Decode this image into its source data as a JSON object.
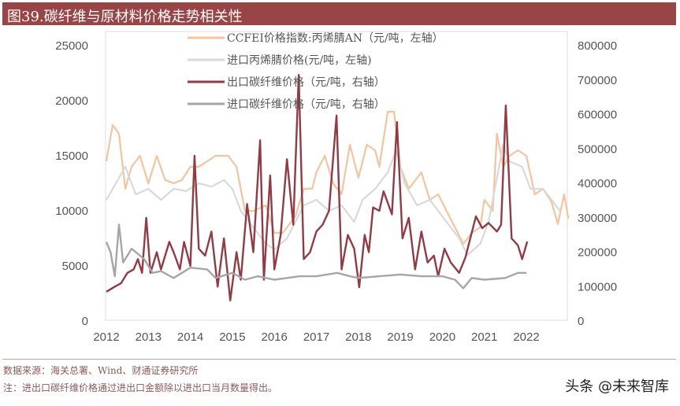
{
  "title": "图39.碳纤维与原材料价格走势相关性",
  "footer": {
    "source": "数据来源：海关总署、Wind、财通证券研究所",
    "note": "注：进出口碳纤维价格通过进出口金额除以进出口当月数量得出。"
  },
  "watermark": "头条 @未来智库",
  "chart_data": {
    "type": "line",
    "title": "",
    "x_axis": {
      "ticks": [
        "2012",
        "2013",
        "2014",
        "2015",
        "2016",
        "2017",
        "2018",
        "2019",
        "2020",
        "2021",
        "2022"
      ],
      "range": [
        2012,
        2023.05
      ]
    },
    "y_left": {
      "ticks": [
        "0",
        "5000",
        "10000",
        "15000",
        "20000",
        "25000"
      ],
      "range": [
        0,
        25000
      ]
    },
    "y_right": {
      "ticks": [
        "0",
        "100000",
        "200000",
        "300000",
        "400000",
        "500000",
        "600000",
        "700000",
        "800000"
      ],
      "range": [
        0,
        800000
      ]
    },
    "grid": false,
    "legend_position": "top-center",
    "series": [
      {
        "name": "CCFEI价格指数:丙烯腈AN（元/吨，左轴）",
        "axis": "left",
        "color": "#f5c49c",
        "x": [
          2012.0,
          2012.15,
          2012.3,
          2012.45,
          2012.6,
          2012.8,
          2013.0,
          2013.2,
          2013.4,
          2013.6,
          2013.8,
          2014.0,
          2014.2,
          2014.4,
          2014.6,
          2014.9,
          2015.1,
          2015.3,
          2015.5,
          2015.8,
          2016.0,
          2016.2,
          2016.5,
          2016.7,
          2016.9,
          2017.0,
          2017.2,
          2017.4,
          2017.6,
          2017.8,
          2018.0,
          2018.2,
          2018.4,
          2018.5,
          2018.7,
          2018.85,
          2019.0,
          2019.2,
          2019.5,
          2019.7,
          2019.9,
          2020.1,
          2020.3,
          2020.5,
          2020.7,
          2020.9,
          2021.0,
          2021.2,
          2021.3,
          2021.45,
          2021.6,
          2021.8,
          2022.0,
          2022.2,
          2022.4,
          2022.6,
          2022.75,
          2022.9,
          2023.0
        ],
        "y": [
          14500,
          17800,
          17000,
          12000,
          14000,
          15000,
          12500,
          15000,
          12800,
          12500,
          12800,
          14000,
          14000,
          14500,
          15000,
          15000,
          14000,
          10000,
          10000,
          10500,
          8000,
          8000,
          9500,
          12000,
          12000,
          13500,
          15000,
          12500,
          11500,
          16000,
          13000,
          16000,
          15500,
          14000,
          19000,
          19000,
          14000,
          12000,
          13500,
          11000,
          11500,
          10000,
          8500,
          7000,
          8000,
          8500,
          11000,
          10000,
          17000,
          14000,
          15000,
          15500,
          15000,
          11500,
          12000,
          10800,
          8800,
          11500,
          9300
        ]
      },
      {
        "name": "进口丙烯腈价格(元/吨，左轴)",
        "axis": "left",
        "color": "#d9d9d9",
        "x": [
          2012.0,
          2012.3,
          2012.45,
          2012.7,
          2013.0,
          2013.3,
          2013.6,
          2013.9,
          2014.2,
          2014.5,
          2014.8,
          2015.0,
          2015.2,
          2015.5,
          2015.8,
          2016.0,
          2016.3,
          2016.5,
          2016.7,
          2017.0,
          2017.3,
          2017.6,
          2017.9,
          2018.1,
          2018.4,
          2018.7,
          2018.9,
          2019.1,
          2019.4,
          2019.7,
          2019.9,
          2020.1,
          2020.4,
          2020.6,
          2020.9,
          2021.1,
          2021.3,
          2021.45,
          2021.6,
          2021.9,
          2022.1,
          2022.4,
          2022.6,
          2022.8
        ],
        "y": [
          11000,
          13000,
          14000,
          11500,
          12000,
          11000,
          12000,
          11800,
          12500,
          12200,
          12800,
          12000,
          10000,
          8500,
          7000,
          6500,
          7500,
          9000,
          10500,
          11000,
          10000,
          10500,
          9000,
          11000,
          12000,
          13500,
          15500,
          12500,
          10500,
          11000,
          10000,
          9000,
          7500,
          6000,
          7000,
          9000,
          13000,
          16000,
          14500,
          14000,
          12000,
          12000,
          11000,
          10000
        ]
      },
      {
        "name": "出口碳纤维价格（元/吨，右轴）",
        "axis": "right",
        "color": "#943a44",
        "x": [
          2012.0,
          2012.2,
          2012.35,
          2012.5,
          2012.65,
          2012.75,
          2012.85,
          2012.95,
          2013.05,
          2013.2,
          2013.3,
          2013.5,
          2013.6,
          2013.75,
          2013.85,
          2014.0,
          2014.1,
          2014.2,
          2014.35,
          2014.5,
          2014.65,
          2014.8,
          2014.95,
          2015.1,
          2015.2,
          2015.35,
          2015.5,
          2015.66,
          2015.75,
          2015.9,
          2016.0,
          2016.15,
          2016.3,
          2016.45,
          2016.58,
          2016.7,
          2016.85,
          2017.0,
          2017.15,
          2017.3,
          2017.48,
          2017.6,
          2017.75,
          2017.9,
          2018.02,
          2018.15,
          2018.25,
          2018.35,
          2018.5,
          2018.6,
          2018.8,
          2018.92,
          2019.05,
          2019.2,
          2019.35,
          2019.5,
          2019.65,
          2019.8,
          2019.9,
          2020.05,
          2020.2,
          2020.4,
          2020.55,
          2020.8,
          2020.95,
          2021.1,
          2021.3,
          2021.4,
          2021.51,
          2021.65,
          2021.8,
          2021.9,
          2022.02
        ],
        "y": [
          85000,
          100000,
          110000,
          140000,
          150000,
          180000,
          140000,
          300000,
          140000,
          200000,
          150000,
          230000,
          200000,
          150000,
          230000,
          160000,
          480000,
          210000,
          190000,
          260000,
          100000,
          240000,
          60000,
          200000,
          120000,
          340000,
          200000,
          525000,
          120000,
          423000,
          150000,
          250000,
          470000,
          280000,
          715000,
          180000,
          200000,
          260000,
          280000,
          320000,
          597000,
          150000,
          250000,
          210000,
          98000,
          250000,
          200000,
          330000,
          320000,
          377000,
          310000,
          578000,
          240000,
          300000,
          150000,
          260000,
          170000,
          190000,
          130000,
          210000,
          170000,
          140000,
          185000,
          304000,
          270000,
          285000,
          260000,
          280000,
          626000,
          240000,
          220000,
          180000,
          231000
        ]
      },
      {
        "name": "进口碳纤维价格（元/吨，右轴）",
        "axis": "right",
        "color": "#a6a6a6",
        "x": [
          2012.0,
          2012.1,
          2012.2,
          2012.3,
          2012.4,
          2012.6,
          2012.9,
          2013.1,
          2013.3,
          2013.6,
          2014.0,
          2014.4,
          2014.6,
          2015.0,
          2015.3,
          2015.6,
          2016.0,
          2016.3,
          2016.6,
          2017.0,
          2017.5,
          2017.8,
          2018.0,
          2018.5,
          2019.0,
          2019.5,
          2020.0,
          2020.3,
          2020.5,
          2020.7,
          2021.0,
          2021.5,
          2021.8,
          2022.0
        ],
        "y": [
          230000,
          200000,
          130000,
          280000,
          170000,
          210000,
          180000,
          140000,
          145000,
          125000,
          155000,
          150000,
          125000,
          140000,
          120000,
          130000,
          120000,
          125000,
          130000,
          130000,
          140000,
          130000,
          125000,
          130000,
          135000,
          130000,
          130000,
          120000,
          95000,
          125000,
          120000,
          125000,
          140000,
          140000
        ]
      }
    ]
  }
}
